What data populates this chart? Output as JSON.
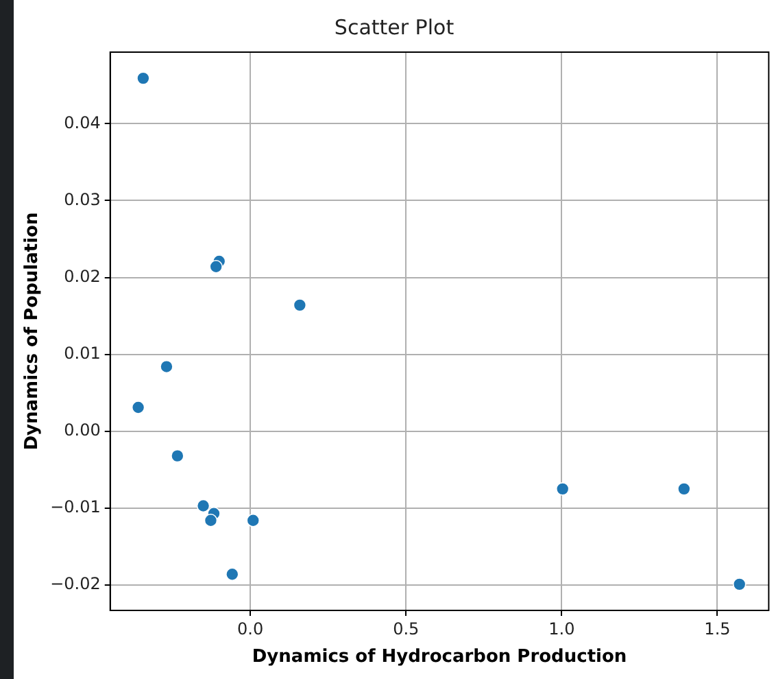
{
  "chart_data": {
    "type": "scatter",
    "title": "Scatter Plot",
    "xlabel": "Dynamics of Hydrocarbon Production",
    "ylabel": "Dynamics of Population",
    "x": [
      -0.344,
      -0.1,
      -0.11,
      0.159,
      -0.269,
      -0.36,
      -0.234,
      -0.151,
      -0.117,
      -0.127,
      0.009,
      -0.058,
      1.003,
      1.393,
      1.571
    ],
    "series": [
      {
        "color": "#1f77b4",
        "values": [
          0.0459,
          0.0221,
          0.0214,
          0.0164,
          0.0084,
          0.0031,
          -0.0032,
          -0.0097,
          -0.0107,
          -0.0116,
          -0.0116,
          -0.0186,
          -0.0075,
          -0.0075,
          -0.0199
        ]
      }
    ],
    "xlim": [
      -0.45,
      1.665
    ],
    "ylim": [
      -0.0233,
      0.0493
    ],
    "xticks": [
      {
        "value": 0,
        "label": "0.0"
      },
      {
        "value": 0.5,
        "label": "0.5"
      },
      {
        "value": 1,
        "label": "1.0"
      },
      {
        "value": 1.5,
        "label": "1.5"
      }
    ],
    "yticks": [
      {
        "value": -0.02,
        "label": "−0.02"
      },
      {
        "value": -0.01,
        "label": "−0.01"
      },
      {
        "value": 0,
        "label": "0.00"
      },
      {
        "value": 0.01,
        "label": "0.01"
      },
      {
        "value": 0.02,
        "label": "0.02"
      },
      {
        "value": 0.03,
        "label": "0.03"
      },
      {
        "value": 0.04,
        "label": "0.04"
      }
    ],
    "grid": true,
    "legend": false,
    "marker": "circle"
  }
}
